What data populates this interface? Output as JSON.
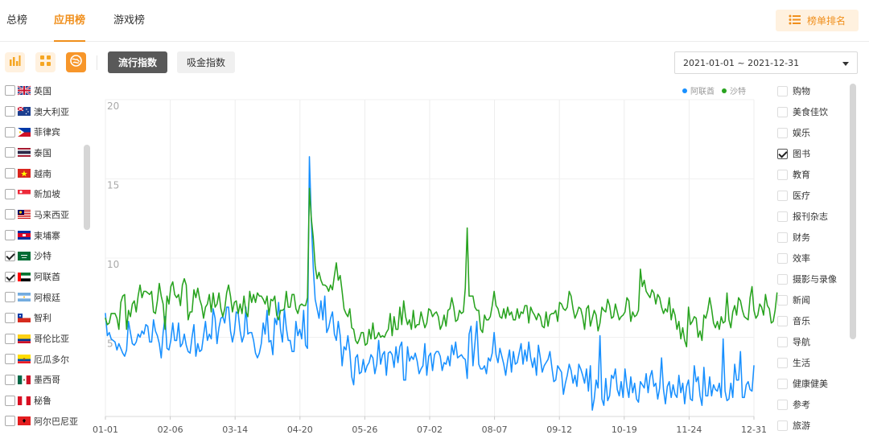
{
  "tabs": {
    "items": [
      {
        "label": "总榜"
      },
      {
        "label": "应用榜"
      },
      {
        "label": "游戏榜"
      }
    ],
    "active": 1,
    "rank_button": "榜单排名"
  },
  "toolbar": {
    "icons": [
      "bar-chart-icon",
      "grid-icon",
      "globe-icon"
    ],
    "active_icon": "globe-icon",
    "trend_index": "流行指数",
    "earning_index": "吸金指数",
    "date_range": "2021-01-01 ~ 2021-12-31"
  },
  "countries": [
    {
      "name": "英国",
      "checked": false,
      "flag": "gb"
    },
    {
      "name": "澳大利亚",
      "checked": false,
      "flag": "au"
    },
    {
      "name": "菲律宾",
      "checked": false,
      "flag": "ph"
    },
    {
      "name": "泰国",
      "checked": false,
      "flag": "th"
    },
    {
      "name": "越南",
      "checked": false,
      "flag": "vn"
    },
    {
      "name": "新加坡",
      "checked": false,
      "flag": "sg"
    },
    {
      "name": "马来西亚",
      "checked": false,
      "flag": "my"
    },
    {
      "name": "柬埔寨",
      "checked": false,
      "flag": "kh"
    },
    {
      "name": "沙特",
      "checked": true,
      "flag": "sa"
    },
    {
      "name": "阿联酋",
      "checked": true,
      "flag": "ae"
    },
    {
      "name": "阿根廷",
      "checked": false,
      "flag": "ar"
    },
    {
      "name": "智利",
      "checked": false,
      "flag": "cl"
    },
    {
      "name": "哥伦比亚",
      "checked": false,
      "flag": "co"
    },
    {
      "name": "厄瓜多尔",
      "checked": false,
      "flag": "ec"
    },
    {
      "name": "墨西哥",
      "checked": false,
      "flag": "mx"
    },
    {
      "name": "秘鲁",
      "checked": false,
      "flag": "pe"
    },
    {
      "name": "阿尔巴尼亚",
      "checked": false,
      "flag": "al"
    }
  ],
  "categories": [
    {
      "name": "购物",
      "checked": false
    },
    {
      "name": "美食佳饮",
      "checked": false
    },
    {
      "name": "娱乐",
      "checked": false
    },
    {
      "name": "图书",
      "checked": true
    },
    {
      "name": "教育",
      "checked": false
    },
    {
      "name": "医疗",
      "checked": false
    },
    {
      "name": "报刊杂志",
      "checked": false
    },
    {
      "name": "财务",
      "checked": false
    },
    {
      "name": "效率",
      "checked": false
    },
    {
      "name": "摄影与录像",
      "checked": false
    },
    {
      "name": "新闻",
      "checked": false
    },
    {
      "name": "音乐",
      "checked": false
    },
    {
      "name": "导航",
      "checked": false
    },
    {
      "name": "生活",
      "checked": false
    },
    {
      "name": "健康健美",
      "checked": false
    },
    {
      "name": "参考",
      "checked": false
    },
    {
      "name": "旅游",
      "checked": false
    }
  ],
  "chart_data": {
    "type": "line",
    "ylim": [
      0,
      20
    ],
    "yticks": [
      5,
      10,
      15,
      20
    ],
    "xticks": [
      "01-01",
      "02-06",
      "03-14",
      "04-20",
      "05-26",
      "07-02",
      "08-07",
      "09-12",
      "10-19",
      "11-24",
      "12-31"
    ],
    "grid": true,
    "legend_placement": "top-right",
    "series": [
      {
        "name": "阿联酋",
        "color": "#1890ff",
        "values": [
          6.5,
          5.1,
          5.3,
          4.9,
          4.8,
          4.7,
          4.2,
          4.6,
          4.3,
          4.0,
          3.8,
          4.2,
          6.0,
          5.3,
          4.6,
          4.5,
          4.7,
          5.2,
          5.0,
          5.4,
          5.2,
          5.8,
          5.7,
          4.7,
          4.7,
          6.1,
          5.4,
          5.1,
          4.6,
          3.7,
          5.3,
          6.3,
          4.3,
          4.2,
          4.8,
          5.9,
          4.8,
          4.8,
          5.9,
          4.4,
          4.6,
          5.2,
          4.5,
          4.1,
          4.0,
          5.0,
          5.8,
          3.8,
          4.6,
          4.1,
          4.2,
          5.1,
          6.0,
          4.8,
          5.2,
          4.9,
          6.8,
          6.2,
          4.6,
          5.6,
          6.2,
          6.3,
          5.9,
          6.9,
          6.9,
          5.4,
          4.7,
          5.3,
          6.6,
          6.5,
          5.4,
          4.7,
          5.1,
          6.9,
          5.2,
          5.3,
          5.3,
          4.8,
          4.0,
          3.7,
          4.0,
          4.6,
          5.9,
          5.2,
          6.7,
          4.7,
          4.8,
          3.9,
          6.2,
          5.8,
          7.2,
          5.5,
          4.7,
          6.8,
          5.6,
          4.8,
          4.8,
          4.1,
          4.1,
          6.0,
          5.1,
          5.5,
          4.9,
          6.7,
          4.5,
          4.3,
          16.4,
          12.4,
          9.4,
          7.4,
          6.8,
          6.2,
          7.3,
          6.1,
          7.6,
          5.3,
          5.6,
          6.2,
          6.6,
          5.2,
          4.8,
          6.0,
          5.1,
          3.2,
          4.4,
          4.2,
          5.1,
          4.1,
          2.5,
          2.0,
          3.7,
          3.9,
          2.7,
          2.8,
          3.6,
          2.8,
          3.2,
          3.4,
          3.9,
          3.7,
          2.7,
          3.3,
          4.8,
          3.3,
          3.9,
          4.1,
          2.6,
          4.0,
          4.1,
          3.9,
          3.1,
          4.4,
          3.4,
          4.4,
          4.7,
          2.3,
          2.3,
          4.4,
          3.5,
          3.8,
          3.6,
          4.0,
          3.5,
          2.7,
          3.0,
          3.2,
          4.6,
          2.6,
          3.8,
          4.0,
          2.9,
          3.9,
          4.1,
          4.1,
          3.8,
          2.9,
          3.4,
          3.3,
          3.8,
          3.2,
          4.5,
          3.9,
          4.7,
          3.7,
          3.8,
          3.9,
          3.7,
          3.6,
          2.4,
          5.2,
          5.7,
          3.2,
          4.6,
          6.0,
          3.3,
          3.0,
          3.0,
          3.2,
          2.7,
          3.7,
          3.5,
          4.0,
          5.3,
          3.9,
          3.4,
          4.3,
          3.8,
          3.3,
          2.6,
          3.5,
          4.2,
          2.8,
          4.1,
          3.3,
          3.4,
          4.0,
          4.6,
          3.3,
          4.2,
          3.5,
          4.7,
          3.7,
          3.1,
          3.7,
          2.6,
          4.5,
          3.7,
          2.8,
          3.2,
          3.4,
          3.6,
          4.1,
          3.1,
          2.2,
          2.3,
          3.2,
          3.0,
          2.8,
          1.4,
          2.1,
          2.6,
          3.3,
          2.9,
          2.1,
          2.6,
          1.9,
          3.3,
          3.0,
          2.6,
          2.1,
          3.0,
          1.6,
          3.2,
          0.4,
          1.1,
          2.3,
          1.8,
          5.1,
          1.1,
          0.7,
          2.4,
          1.0,
          1.3,
          2.6,
          2.4,
          3.0,
          1.7,
          1.3,
          2.2,
          1.2,
          3.0,
          1.9,
          1.2,
          2.5,
          1.5,
          2.1,
          1.1,
          0.9,
          2.2,
          2.0,
          1.8,
          2.7,
          1.5,
          2.5,
          2.9,
          1.9,
          2.1,
          1.1,
          1.8,
          3.7,
          1.7,
          0.8,
          1.9,
          2.2,
          1.2,
          2.0,
          1.4,
          1.2,
          2.6,
          1.5,
          2.1,
          0.8,
          1.9,
          2.3,
          1.1,
          1.0,
          3.2,
          2.2,
          2.5,
          1.3,
          0.7,
          3.1,
          1.3,
          1.3,
          2.5,
          1.3,
          2.0,
          1.7,
          1.6,
          2.1,
          1.2,
          4.9,
          1.6,
          1.0,
          1.1,
          2.1,
          1.2,
          3.3,
          2.3,
          2.3,
          4.1,
          1.2,
          1.2,
          2.0,
          2.2,
          1.7,
          1.6,
          3.2
        ]
      },
      {
        "name": "沙特",
        "color": "#28a31f",
        "values": [
          6.2,
          5.8,
          5.9,
          6.5,
          6.5,
          6.5,
          6.2,
          5.5,
          7.2,
          7.6,
          7.7,
          5.5,
          6.7,
          6.3,
          7.1,
          7.3,
          6.6,
          7.6,
          8.3,
          7.5,
          7.9,
          7.9,
          7.8,
          7.7,
          7.9,
          6.6,
          6.5,
          7.3,
          8.4,
          7.6,
          7.1,
          5.5,
          7.6,
          7.1,
          8.2,
          8.5,
          7.7,
          7.5,
          7.7,
          7.0,
          8.3,
          8.7,
          8.3,
          6.1,
          6.6,
          6.6,
          8.0,
          7.5,
          8.1,
          7.4,
          7.0,
          6.2,
          6.9,
          7.1,
          7.7,
          6.6,
          7.8,
          6.9,
          7.1,
          7.8,
          6.8,
          6.3,
          6.8,
          7.8,
          8.3,
          7.6,
          6.6,
          7.2,
          7.3,
          6.5,
          7.1,
          6.5,
          7.6,
          6.6,
          6.3,
          7.9,
          7.2,
          7.7,
          7.2,
          7.8,
          7.6,
          7.6,
          7.4,
          7.1,
          7.6,
          6.4,
          7.4,
          7.3,
          7.6,
          6.4,
          6.1,
          6.7,
          6.7,
          6.8,
          7.9,
          6.9,
          6.9,
          7.7,
          7.7,
          6.8,
          6.5,
          7.0,
          7.1,
          7.0,
          7.0,
          7.5,
          14.4,
          12.5,
          11.3,
          9.5,
          8.7,
          9.1,
          8.6,
          8.3,
          8.3,
          8.2,
          7.9,
          8.3,
          8.0,
          8.9,
          9.7,
          8.6,
          8.9,
          7.9,
          6.8,
          6.5,
          6.3,
          6.8,
          5.6,
          5.5,
          4.8,
          4.6,
          4.9,
          5.3,
          5.3,
          4.5,
          4.6,
          5.5,
          4.9,
          5.9,
          4.9,
          5.0,
          5.3,
          5.0,
          5.1,
          5.0,
          5.3,
          5.5,
          6.5,
          5.1,
          6.3,
          5.5,
          5.5,
          6.9,
          5.8,
          7.3,
          6.3,
          5.8,
          6.1,
          5.5,
          6.7,
          5.6,
          5.8,
          5.8,
          6.6,
          6.1,
          5.6,
          5.9,
          6.8,
          6.7,
          6.3,
          6.5,
          6.6,
          6.3,
          5.5,
          5.8,
          6.4,
          5.7,
          6.7,
          6.8,
          7.5,
          6.9,
          6.0,
          6.1,
          6.7,
          6.5,
          6.6,
          8.1,
          11.9,
          7.6,
          7.6,
          7.6,
          6.9,
          6.7,
          6.7,
          5.5,
          5.3,
          6.4,
          6.1,
          6.1,
          6.3,
          7.0,
          7.9,
          7.0,
          6.8,
          6.3,
          6.2,
          6.8,
          6.2,
          6.9,
          6.4,
          6.6,
          6.1,
          6.1,
          6.8,
          6.2,
          6.6,
          6.5,
          7.0,
          7.0,
          5.9,
          6.9,
          6.6,
          6.4,
          6.1,
          6.5,
          6.3,
          5.7,
          5.6,
          6.6,
          5.7,
          6.4,
          6.5,
          6.5,
          6.7,
          6.0,
          7.2,
          7.1,
          6.8,
          6.7,
          6.9,
          7.9,
          7.6,
          6.8,
          6.2,
          6.5,
          6.9,
          6.8,
          6.3,
          5.5,
          6.8,
          7.0,
          5.7,
          6.2,
          6.7,
          6.4,
          5.4,
          5.9,
          6.9,
          6.7,
          6.6,
          7.4,
          7.0,
          6.2,
          6.3,
          7.1,
          6.6,
          6.1,
          6.3,
          6.4,
          6.6,
          7.5,
          7.3,
          6.0,
          6.6,
          6.3,
          6.4,
          6.7,
          9.3,
          8.2,
          8.6,
          7.9,
          7.7,
          7.5,
          8.0,
          7.8,
          7.1,
          7.7,
          7.5,
          6.9,
          6.5,
          6.8,
          6.6,
          7.5,
          6.1,
          6.8,
          6.4,
          5.5,
          6.0,
          4.9,
          5.6,
          4.8,
          4.4,
          6.9,
          5.8,
          6.0,
          6.3,
          6.2,
          5.0,
          5.4,
          4.8,
          6.4,
          6.2,
          6.7,
          7.5,
          6.8,
          5.9,
          5.6,
          6.0,
          5.5,
          6.3,
          5.9,
          6.0,
          7.8,
          6.1,
          5.6,
          6.6,
          7.0,
          6.4,
          7.5,
          7.3,
          6.7,
          6.3,
          6.2,
          6.1,
          7.5,
          8.2,
          6.7,
          6.2,
          6.4,
          7.1,
          6.9,
          6.4,
          7.7,
          7.0,
          6.8,
          5.9,
          6.0,
          6.7,
          7.8
        ]
      }
    ]
  }
}
